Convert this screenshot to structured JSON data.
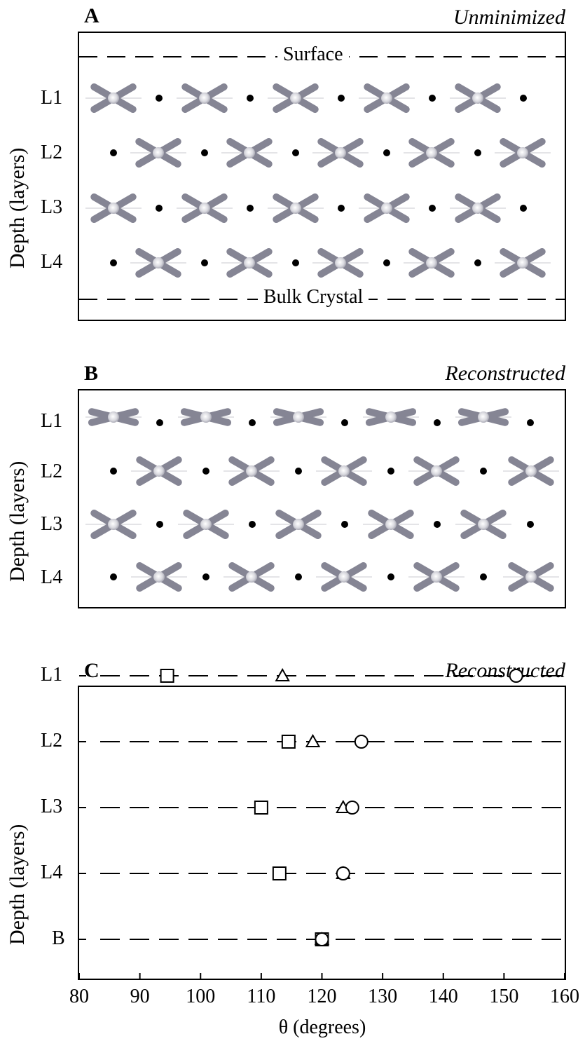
{
  "panels": [
    {
      "label": "A",
      "note": "Unminimized",
      "ylabel": "Depth (layers)",
      "surface_label": "Surface",
      "bulk_label": "Bulk Crystal",
      "layers": [
        "L1",
        "L2",
        "L3",
        "L4"
      ],
      "molecule_angle_deg": [
        120,
        120,
        120,
        120
      ]
    },
    {
      "label": "B",
      "note": "Reconstructed",
      "ylabel": "Depth (layers)",
      "layers": [
        "L1",
        "L2",
        "L3",
        "L4"
      ],
      "molecule_angle_deg": [
        152,
        120,
        120,
        120
      ]
    }
  ],
  "chart_data": {
    "type": "scatter",
    "label": "C",
    "note": "Reconstructed",
    "xlabel": "θ (degrees)",
    "ylabel": "Depth (layers)",
    "xlim": [
      80,
      160
    ],
    "xticks": [
      80,
      90,
      100,
      110,
      120,
      130,
      140,
      150,
      160
    ],
    "categories": [
      "L1",
      "L2",
      "L3",
      "L4",
      "B"
    ],
    "series": [
      {
        "marker": "square",
        "values": [
          94.5,
          114.5,
          110,
          113,
          120
        ]
      },
      {
        "marker": "triangle",
        "values": [
          113.5,
          118.5,
          123.5,
          123.5,
          120
        ]
      },
      {
        "marker": "circle",
        "values": [
          152,
          126.5,
          125,
          123.5,
          120
        ]
      }
    ],
    "grid": false
  }
}
